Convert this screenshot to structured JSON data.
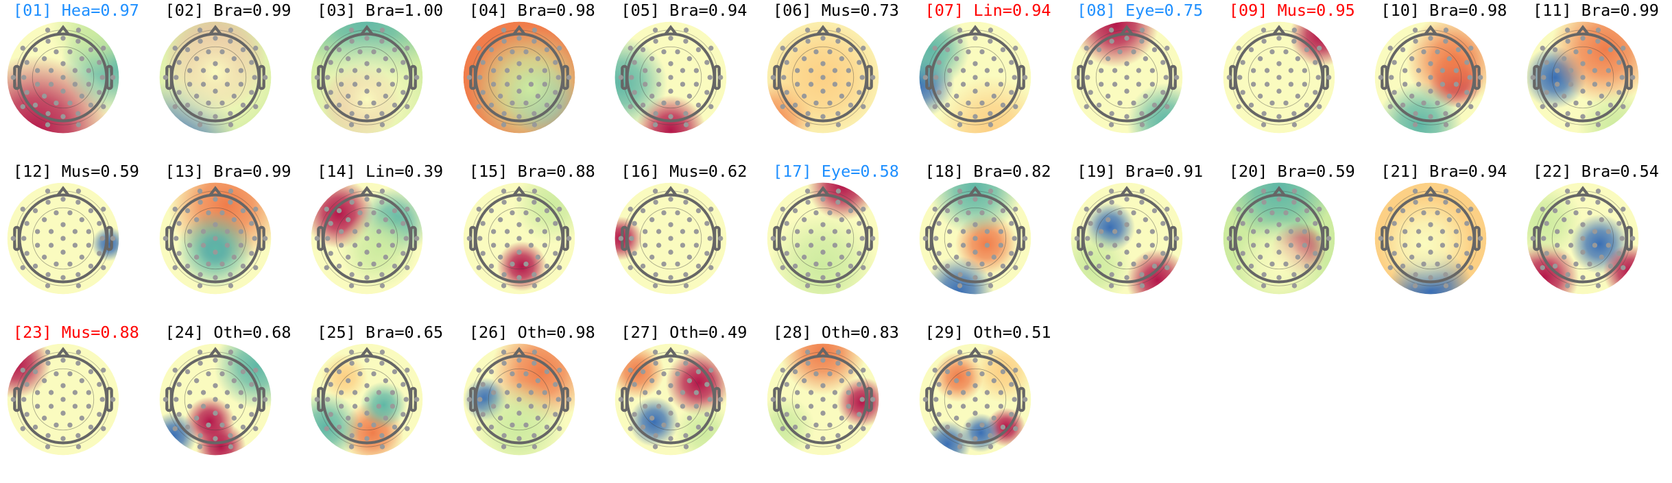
{
  "label_colors": {
    "blue": "#1e8fff",
    "red": "#ff0000",
    "black": "#000000"
  },
  "colormap": [
    "#3a6fb5",
    "#5fb7a6",
    "#cdeba0",
    "#fafbbf",
    "#fcd085",
    "#f07d4b",
    "#b4164a"
  ],
  "components": [
    {
      "label": "[01] Hea=0.97",
      "color": "blue"
    },
    {
      "label": "[02] Bra=0.99",
      "color": "black"
    },
    {
      "label": "[03] Bra=1.00",
      "color": "black"
    },
    {
      "label": "[04] Bra=0.98",
      "color": "black"
    },
    {
      "label": "[05] Bra=0.94",
      "color": "black"
    },
    {
      "label": "[06] Mus=0.73",
      "color": "black"
    },
    {
      "label": "[07] Lin=0.94",
      "color": "red"
    },
    {
      "label": "[08] Eye=0.75",
      "color": "blue"
    },
    {
      "label": "[09] Mus=0.95",
      "color": "red"
    },
    {
      "label": "[10] Bra=0.98",
      "color": "black"
    },
    {
      "label": "[11] Bra=0.99",
      "color": "black"
    },
    {
      "label": "[12] Mus=0.59",
      "color": "black"
    },
    {
      "label": "[13] Bra=0.99",
      "color": "black"
    },
    {
      "label": "[14] Lin=0.39",
      "color": "black"
    },
    {
      "label": "[15] Bra=0.88",
      "color": "black"
    },
    {
      "label": "[16] Mus=0.62",
      "color": "black"
    },
    {
      "label": "[17] Eye=0.58",
      "color": "blue"
    },
    {
      "label": "[18] Bra=0.82",
      "color": "black"
    },
    {
      "label": "[19] Bra=0.91",
      "color": "black"
    },
    {
      "label": "[20] Bra=0.59",
      "color": "black"
    },
    {
      "label": "[21] Bra=0.94",
      "color": "black"
    },
    {
      "label": "[22] Bra=0.54",
      "color": "black"
    },
    {
      "label": "[23] Mus=0.88",
      "color": "red"
    },
    {
      "label": "[24] Oth=0.68",
      "color": "black"
    },
    {
      "label": "[25] Bra=0.65",
      "color": "black"
    },
    {
      "label": "[26] Oth=0.98",
      "color": "black"
    },
    {
      "label": "[27] Oth=0.49",
      "color": "black"
    },
    {
      "label": "[28] Oth=0.83",
      "color": "black"
    },
    {
      "label": "[29] Oth=0.51",
      "color": "black"
    }
  ]
}
